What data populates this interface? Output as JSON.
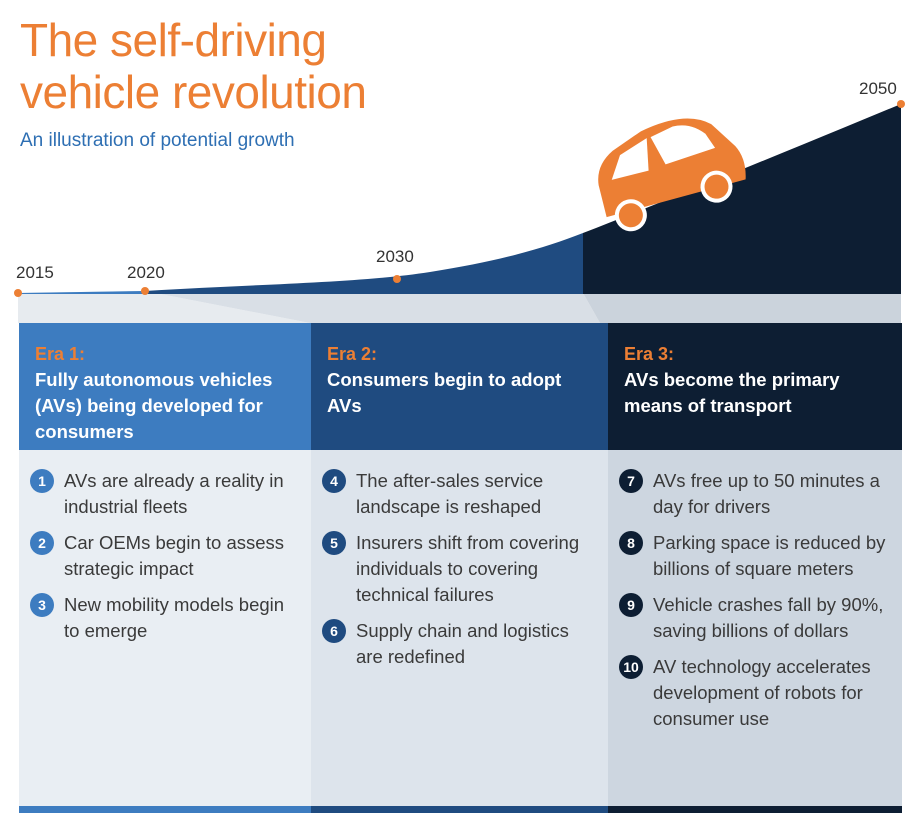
{
  "title": {
    "line1": "The self-driving",
    "line2": "vehicle revolution"
  },
  "subtitle": "An illustration of potential growth",
  "timeline": {
    "years": [
      "2015",
      "2020",
      "2030",
      "2050"
    ]
  },
  "eras": [
    {
      "label": "Era 1:",
      "title": "Fully autonomous vehicles (AVs) being developed for consumers",
      "items": [
        {
          "num": "1",
          "text": "AVs are already a reality in industrial fleets"
        },
        {
          "num": "2",
          "text": "Car OEMs begin to assess strategic impact"
        },
        {
          "num": "3",
          "text": "New mobility models begin to emerge"
        }
      ]
    },
    {
      "label": "Era 2:",
      "title": "Consumers begin to adopt AVs",
      "items": [
        {
          "num": "4",
          "text": "The after-sales service landscape is reshaped"
        },
        {
          "num": "5",
          "text": "Insurers shift from covering individuals to covering technical failures"
        },
        {
          "num": "6",
          "text": "Supply chain and logistics are redefined"
        }
      ]
    },
    {
      "label": "Era 3:",
      "title": "AVs become the primary means of transport",
      "items": [
        {
          "num": "7",
          "text": "AVs free up to 50 minutes a day for drivers"
        },
        {
          "num": "8",
          "text": "Parking space is reduced by billions of square meters"
        },
        {
          "num": "9",
          "text": "Vehicle crashes fall by 90%, saving billions of dollars"
        },
        {
          "num": "10",
          "text": "AV technology accelerates development of robots for consumer use"
        }
      ]
    }
  ],
  "colors": {
    "orange": "#ec7f34",
    "era1": "#3d7cc0",
    "era2": "#1f4b80",
    "era3": "#0d1e33",
    "body1": "#e9eef3",
    "body2": "#dde4ec",
    "body3": "#cdd6e0"
  }
}
